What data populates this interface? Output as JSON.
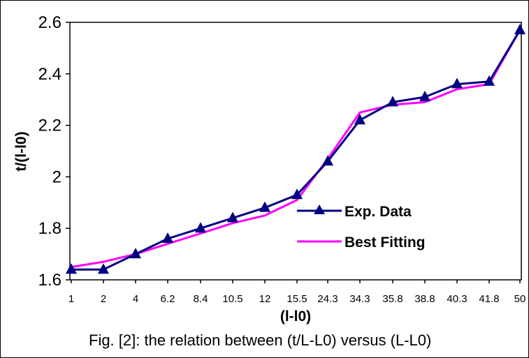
{
  "chart_data": {
    "type": "line",
    "categories": [
      "1",
      "2",
      "4",
      "6.2",
      "8.4",
      "10.5",
      "12",
      "15.5",
      "24.3",
      "34.3",
      "35.8",
      "38.8",
      "40.3",
      "41.8",
      "50"
    ],
    "series": [
      {
        "name": "Exp. Data",
        "color": "#000080",
        "marker": "triangle",
        "values": [
          1.64,
          1.64,
          1.7,
          1.76,
          1.8,
          1.84,
          1.88,
          1.93,
          2.06,
          2.22,
          2.29,
          2.31,
          2.36,
          2.37,
          2.57
        ]
      },
      {
        "name": "Best Fitting",
        "color": "#ff00ff",
        "marker": "none",
        "values": [
          1.65,
          1.67,
          1.7,
          1.74,
          1.78,
          1.82,
          1.85,
          1.91,
          2.07,
          2.25,
          2.28,
          2.29,
          2.34,
          2.36,
          2.57
        ]
      }
    ],
    "ylim": [
      1.6,
      2.6
    ],
    "yticks": [
      "1.6",
      "1.8",
      "2",
      "2.2",
      "2.4",
      "2.6"
    ],
    "xlabel": "(l-l0)",
    "ylabel": "t/(l-l0)",
    "grid": false,
    "legend_position": "center-right"
  },
  "caption": "Fig. [2]: the relation between (t/L-L0) versus (L-L0)"
}
